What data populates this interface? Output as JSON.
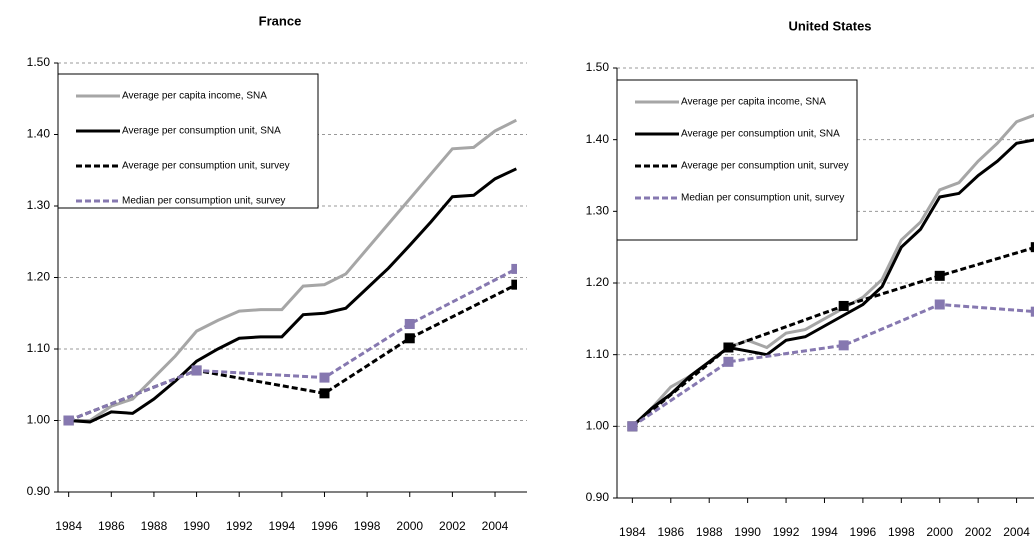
{
  "chart_data": [
    {
      "type": "line",
      "title": "France",
      "xlim": [
        1983.5,
        2005.5
      ],
      "xticks": [
        1984,
        1986,
        1988,
        1990,
        1992,
        1994,
        1996,
        1998,
        2000,
        2002,
        2004
      ],
      "ylim": [
        0.9,
        1.5
      ],
      "yticks": [
        {
          "value": 0.9,
          "label": "0.90"
        },
        {
          "value": 1.0,
          "label": "1.00"
        },
        {
          "value": 1.1,
          "label": "1.10"
        },
        {
          "value": 1.2,
          "label": "1.20"
        },
        {
          "value": 1.3,
          "label": "1.30"
        },
        {
          "value": 1.4,
          "label": "1.40"
        },
        {
          "value": 1.5,
          "label": "1.50"
        }
      ],
      "grid": true,
      "legend": "upper left",
      "series": [
        {
          "name": "Average per capita income, SNA",
          "color": "#a6a6a6",
          "style": "solid",
          "x": [
            1984,
            1985,
            1986,
            1987,
            1988,
            1989,
            1990,
            1991,
            1992,
            1993,
            1994,
            1995,
            1996,
            1997,
            1998,
            1999,
            2000,
            2001,
            2002,
            2003,
            2004,
            2005
          ],
          "values": [
            1.0,
            1.0,
            1.02,
            1.03,
            1.06,
            1.09,
            1.125,
            1.14,
            1.153,
            1.155,
            1.155,
            1.188,
            1.19,
            1.205,
            1.24,
            1.275,
            1.31,
            1.345,
            1.38,
            1.382,
            1.405,
            1.42
          ]
        },
        {
          "name": "Average per consumption unit, SNA",
          "color": "#000000",
          "style": "solid",
          "x": [
            1984,
            1985,
            1986,
            1987,
            1988,
            1989,
            1990,
            1991,
            1992,
            1993,
            1994,
            1995,
            1996,
            1997,
            1998,
            1999,
            2000,
            2001,
            2002,
            2003,
            2004,
            2005
          ],
          "values": [
            1.0,
            0.998,
            1.012,
            1.01,
            1.03,
            1.055,
            1.083,
            1.1,
            1.115,
            1.117,
            1.117,
            1.148,
            1.15,
            1.157,
            1.185,
            1.213,
            1.245,
            1.278,
            1.313,
            1.315,
            1.338,
            1.352
          ]
        },
        {
          "name": "Average per consumption unit, survey",
          "color": "#000000",
          "style": "dashed",
          "x": [
            1984,
            1990,
            1996,
            2000,
            2005
          ],
          "values": [
            1.0,
            1.07,
            1.038,
            1.115,
            1.19
          ]
        },
        {
          "name": "Median per consumption unit, survey",
          "color": "#8678b0",
          "style": "dashed",
          "x": [
            1984,
            1990,
            1996,
            2000,
            2005
          ],
          "values": [
            1.0,
            1.07,
            1.06,
            1.135,
            1.212
          ]
        }
      ]
    },
    {
      "type": "line",
      "title": "United States",
      "xlim": [
        1983.2,
        2006
      ],
      "xticks": [
        1984,
        1986,
        1988,
        1990,
        1992,
        1994,
        1996,
        1998,
        2000,
        2002,
        2004
      ],
      "ylim": [
        0.9,
        1.5
      ],
      "yticks": [
        {
          "value": 0.9,
          "label": "0.90"
        },
        {
          "value": 1.0,
          "label": "1.00"
        },
        {
          "value": 1.1,
          "label": "1.10"
        },
        {
          "value": 1.2,
          "label": "1.20"
        },
        {
          "value": 1.3,
          "label": "1.30"
        },
        {
          "value": 1.4,
          "label": "1.40"
        },
        {
          "value": 1.5,
          "label": "1.50"
        }
      ],
      "grid": true,
      "legend": "upper left",
      "series": [
        {
          "name": "Average per capita income, SNA",
          "color": "#a6a6a6",
          "style": "solid",
          "x": [
            1984,
            1985,
            1986,
            1987,
            1988,
            1989,
            1990,
            1991,
            1992,
            1993,
            1994,
            1995,
            1996,
            1997,
            1998,
            1999,
            2000,
            2001,
            2002,
            2003,
            2004,
            2005
          ],
          "values": [
            1.0,
            1.025,
            1.055,
            1.07,
            1.09,
            1.11,
            1.12,
            1.11,
            1.13,
            1.135,
            1.15,
            1.165,
            1.18,
            1.205,
            1.26,
            1.285,
            1.33,
            1.34,
            1.37,
            1.395,
            1.425,
            1.435
          ]
        },
        {
          "name": "Average per consumption unit, SNA",
          "color": "#000000",
          "style": "solid",
          "x": [
            1984,
            1985,
            1986,
            1987,
            1988,
            1989,
            1990,
            1991,
            1992,
            1993,
            1994,
            1995,
            1996,
            1997,
            1998,
            1999,
            2000,
            2001,
            2002,
            2003,
            2004,
            2005
          ],
          "values": [
            1.0,
            1.025,
            1.045,
            1.07,
            1.09,
            1.11,
            1.105,
            1.1,
            1.12,
            1.125,
            1.14,
            1.155,
            1.17,
            1.195,
            1.25,
            1.275,
            1.32,
            1.325,
            1.35,
            1.37,
            1.395,
            1.4
          ]
        },
        {
          "name": "Average per consumption unit, survey",
          "color": "#000000",
          "style": "dashed",
          "x": [
            1984,
            1989,
            1995,
            2000,
            2005
          ],
          "values": [
            1.0,
            1.11,
            1.168,
            1.21,
            1.25
          ]
        },
        {
          "name": "Median per consumption unit, survey",
          "color": "#8678b0",
          "style": "dashed",
          "x": [
            1984,
            1989,
            1995,
            2000,
            2005
          ],
          "values": [
            1.0,
            1.09,
            1.113,
            1.17,
            1.16
          ]
        }
      ]
    }
  ]
}
